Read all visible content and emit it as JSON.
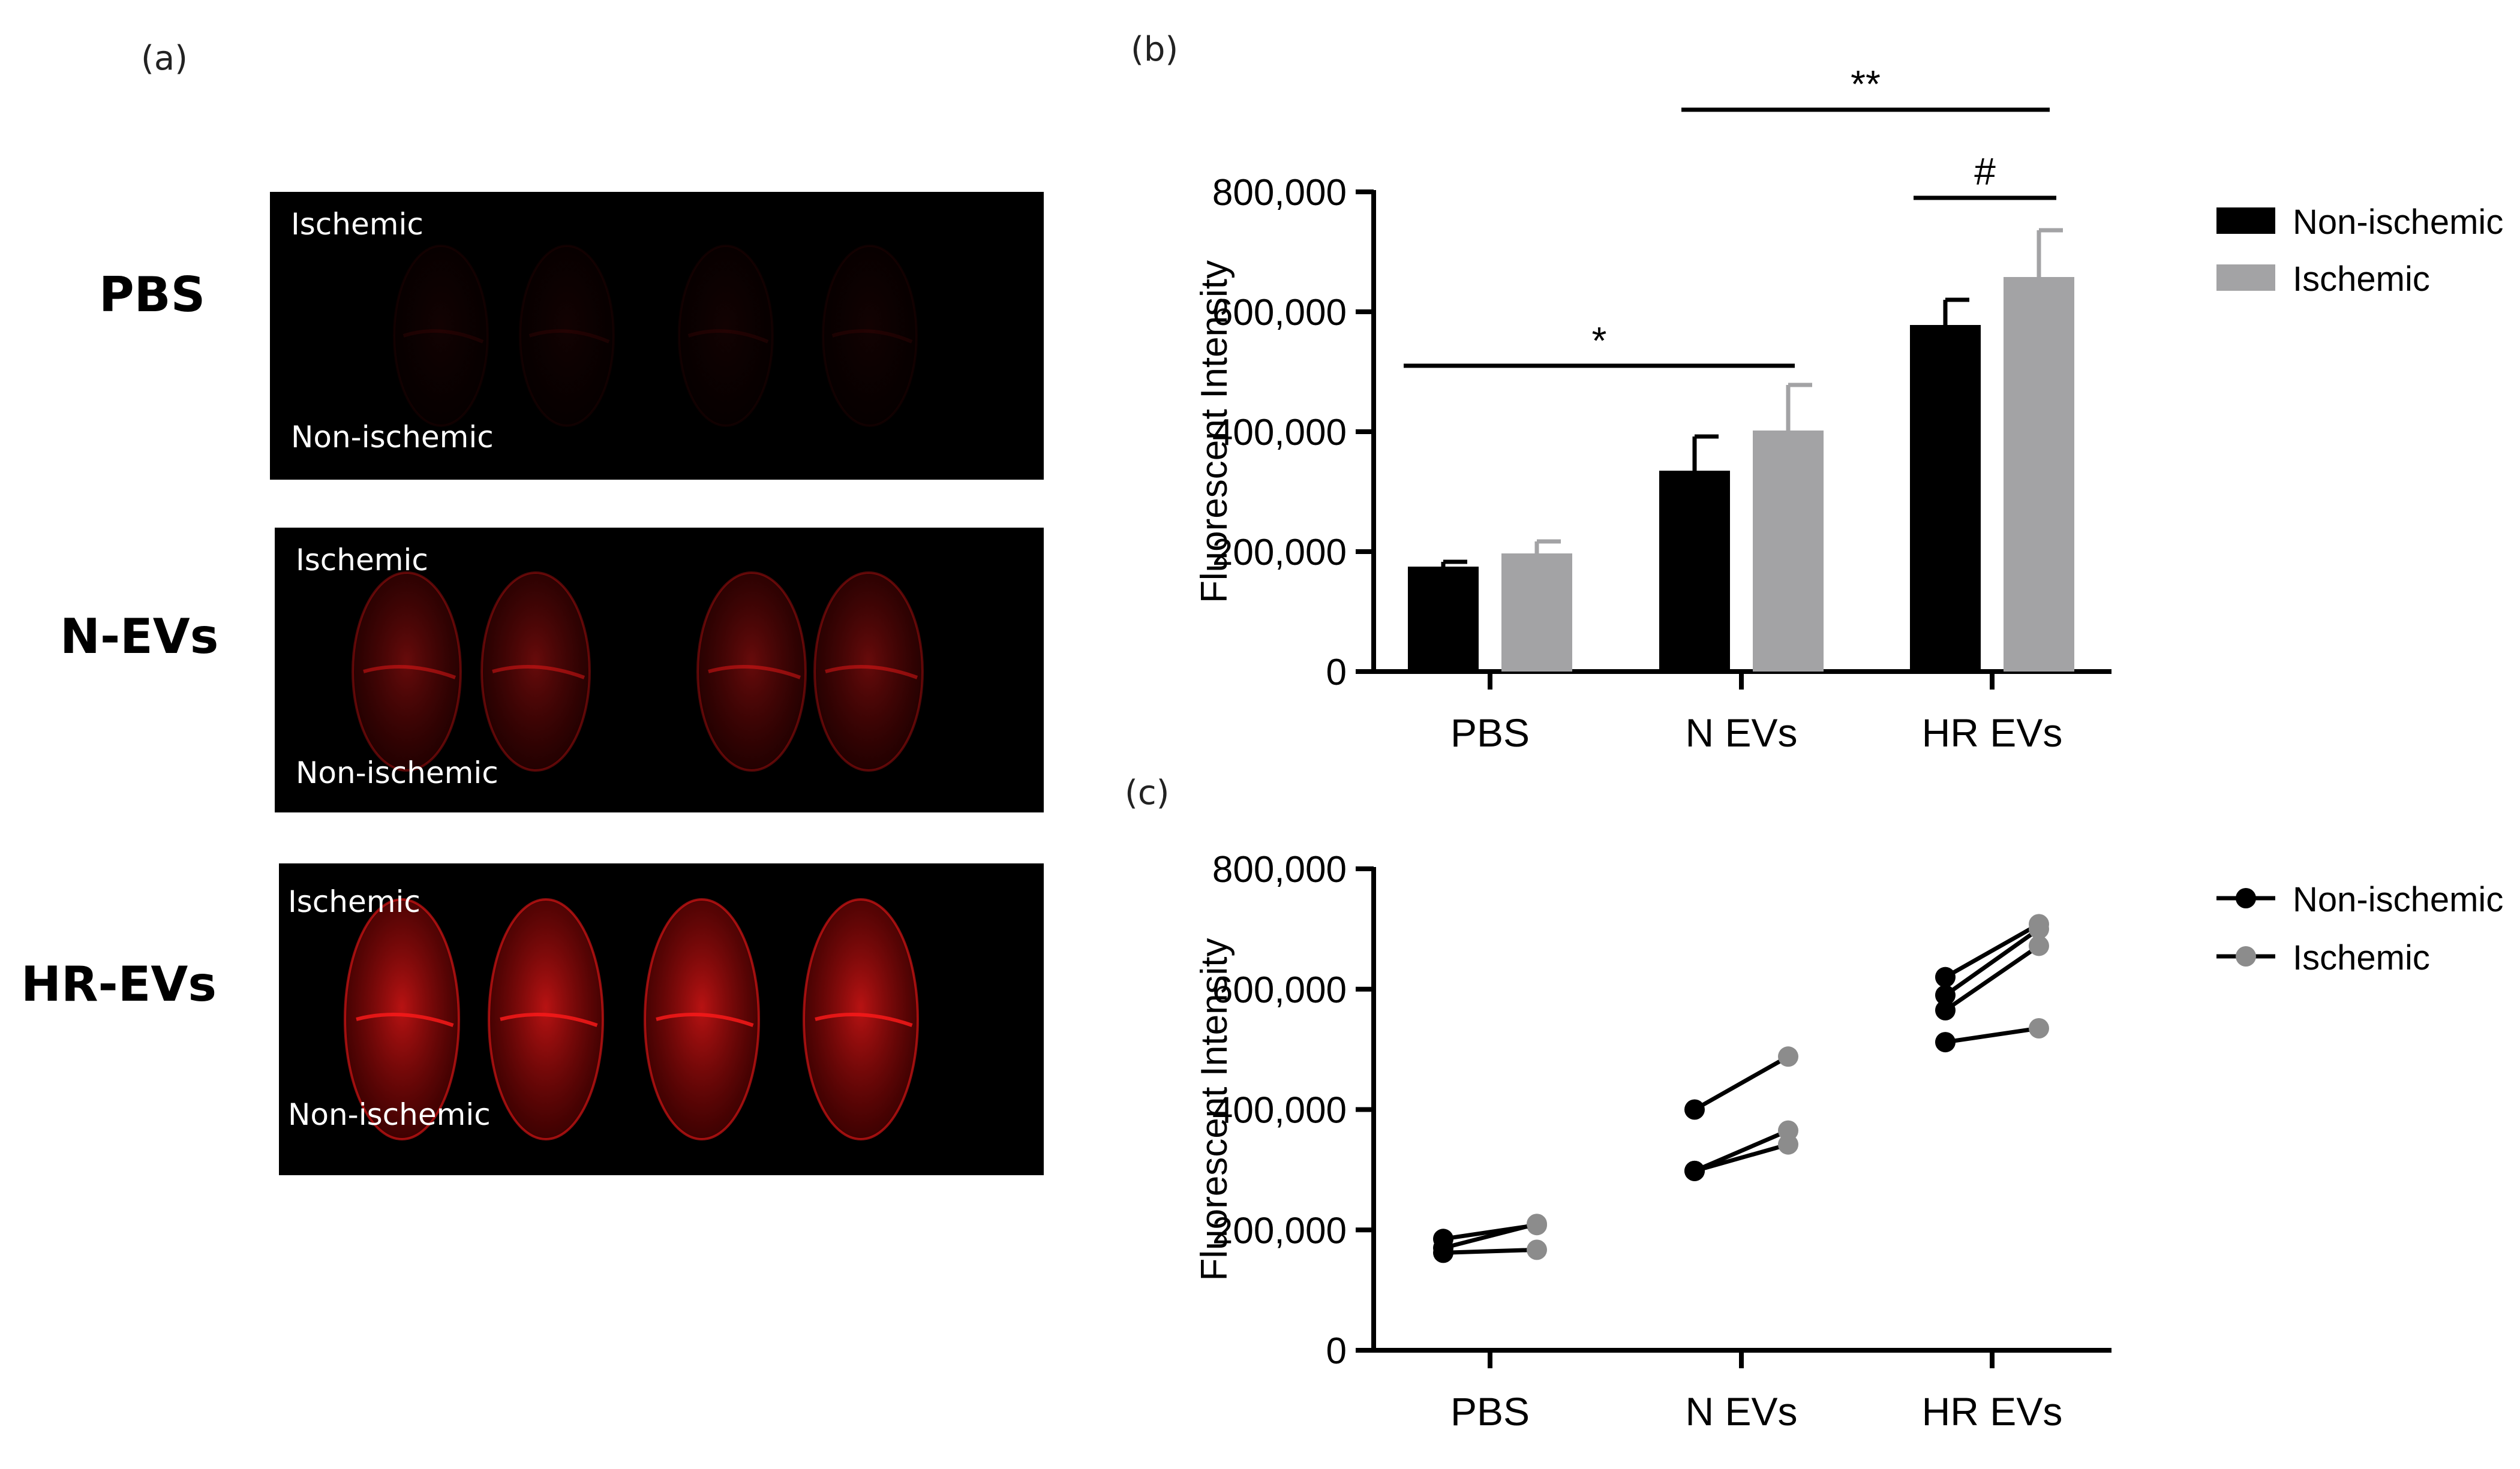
{
  "panels": {
    "a": "(a)",
    "b": "(b)",
    "c": "(c)"
  },
  "images": [
    {
      "label": "PBS",
      "top_text": "Ischemic",
      "bottom_text": "Non-ischemic",
      "intensity": 0.08
    },
    {
      "label": "N-EVs",
      "top_text": "Ischemic",
      "bottom_text": "Non-ischemic",
      "intensity": 0.45
    },
    {
      "label": "HR-EVs",
      "top_text": "Ischemic",
      "bottom_text": "Non-ischemic",
      "intensity": 0.8
    }
  ],
  "colors": {
    "non_ischemic": "#000000",
    "ischemic": "#a3a3a5",
    "ischemic_point": "#8c8c8c",
    "tissue_red": "#ff1a1a"
  },
  "chart_data": [
    {
      "type": "bar",
      "panel": "(b)",
      "categories": [
        "PBS",
        "N EVs",
        "HR EVs"
      ],
      "series": [
        {
          "name": "Non-ischemic",
          "values": [
            175000,
            335000,
            578000
          ],
          "errors": [
            8000,
            57000,
            42000
          ]
        },
        {
          "name": "Ischemic",
          "values": [
            197000,
            402000,
            658000
          ],
          "errors": [
            20000,
            76000,
            78000
          ]
        }
      ],
      "ylabel": "Fluorescent Intensity",
      "ylim": [
        0,
        800000
      ],
      "yticks": [
        "0",
        "200,000",
        "400,000",
        "600,000",
        "800,000"
      ],
      "legend": "right",
      "significance": [
        {
          "label": "*",
          "from": "PBS",
          "to": "N EVs"
        },
        {
          "label": "**",
          "from": "N EVs",
          "to": "HR EVs"
        },
        {
          "label": "#",
          "from": "HR EVs",
          "to": "HR EVs"
        }
      ]
    },
    {
      "type": "line",
      "panel": "(c)",
      "categories": [
        "PBS",
        "N EVs",
        "HR EVs"
      ],
      "series": [
        {
          "name": "Non-ischemic"
        },
        {
          "name": "Ischemic"
        }
      ],
      "pairs": {
        "PBS": [
          [
            185000,
            208000
          ],
          [
            170000,
            210000
          ],
          [
            162000,
            167000
          ]
        ],
        "N EVs": [
          [
            400000,
            488000
          ],
          [
            298000,
            365000
          ],
          [
            298000,
            342000
          ]
        ],
        "HR EVs": [
          [
            620000,
            708000
          ],
          [
            590000,
            700000
          ],
          [
            565000,
            672000
          ],
          [
            512000,
            535000
          ]
        ]
      },
      "ylabel": "Fluorescent Intensity",
      "ylim": [
        0,
        800000
      ],
      "yticks": [
        "0",
        "200,000",
        "400,000",
        "600,000",
        "800,000"
      ],
      "legend": "right"
    }
  ]
}
